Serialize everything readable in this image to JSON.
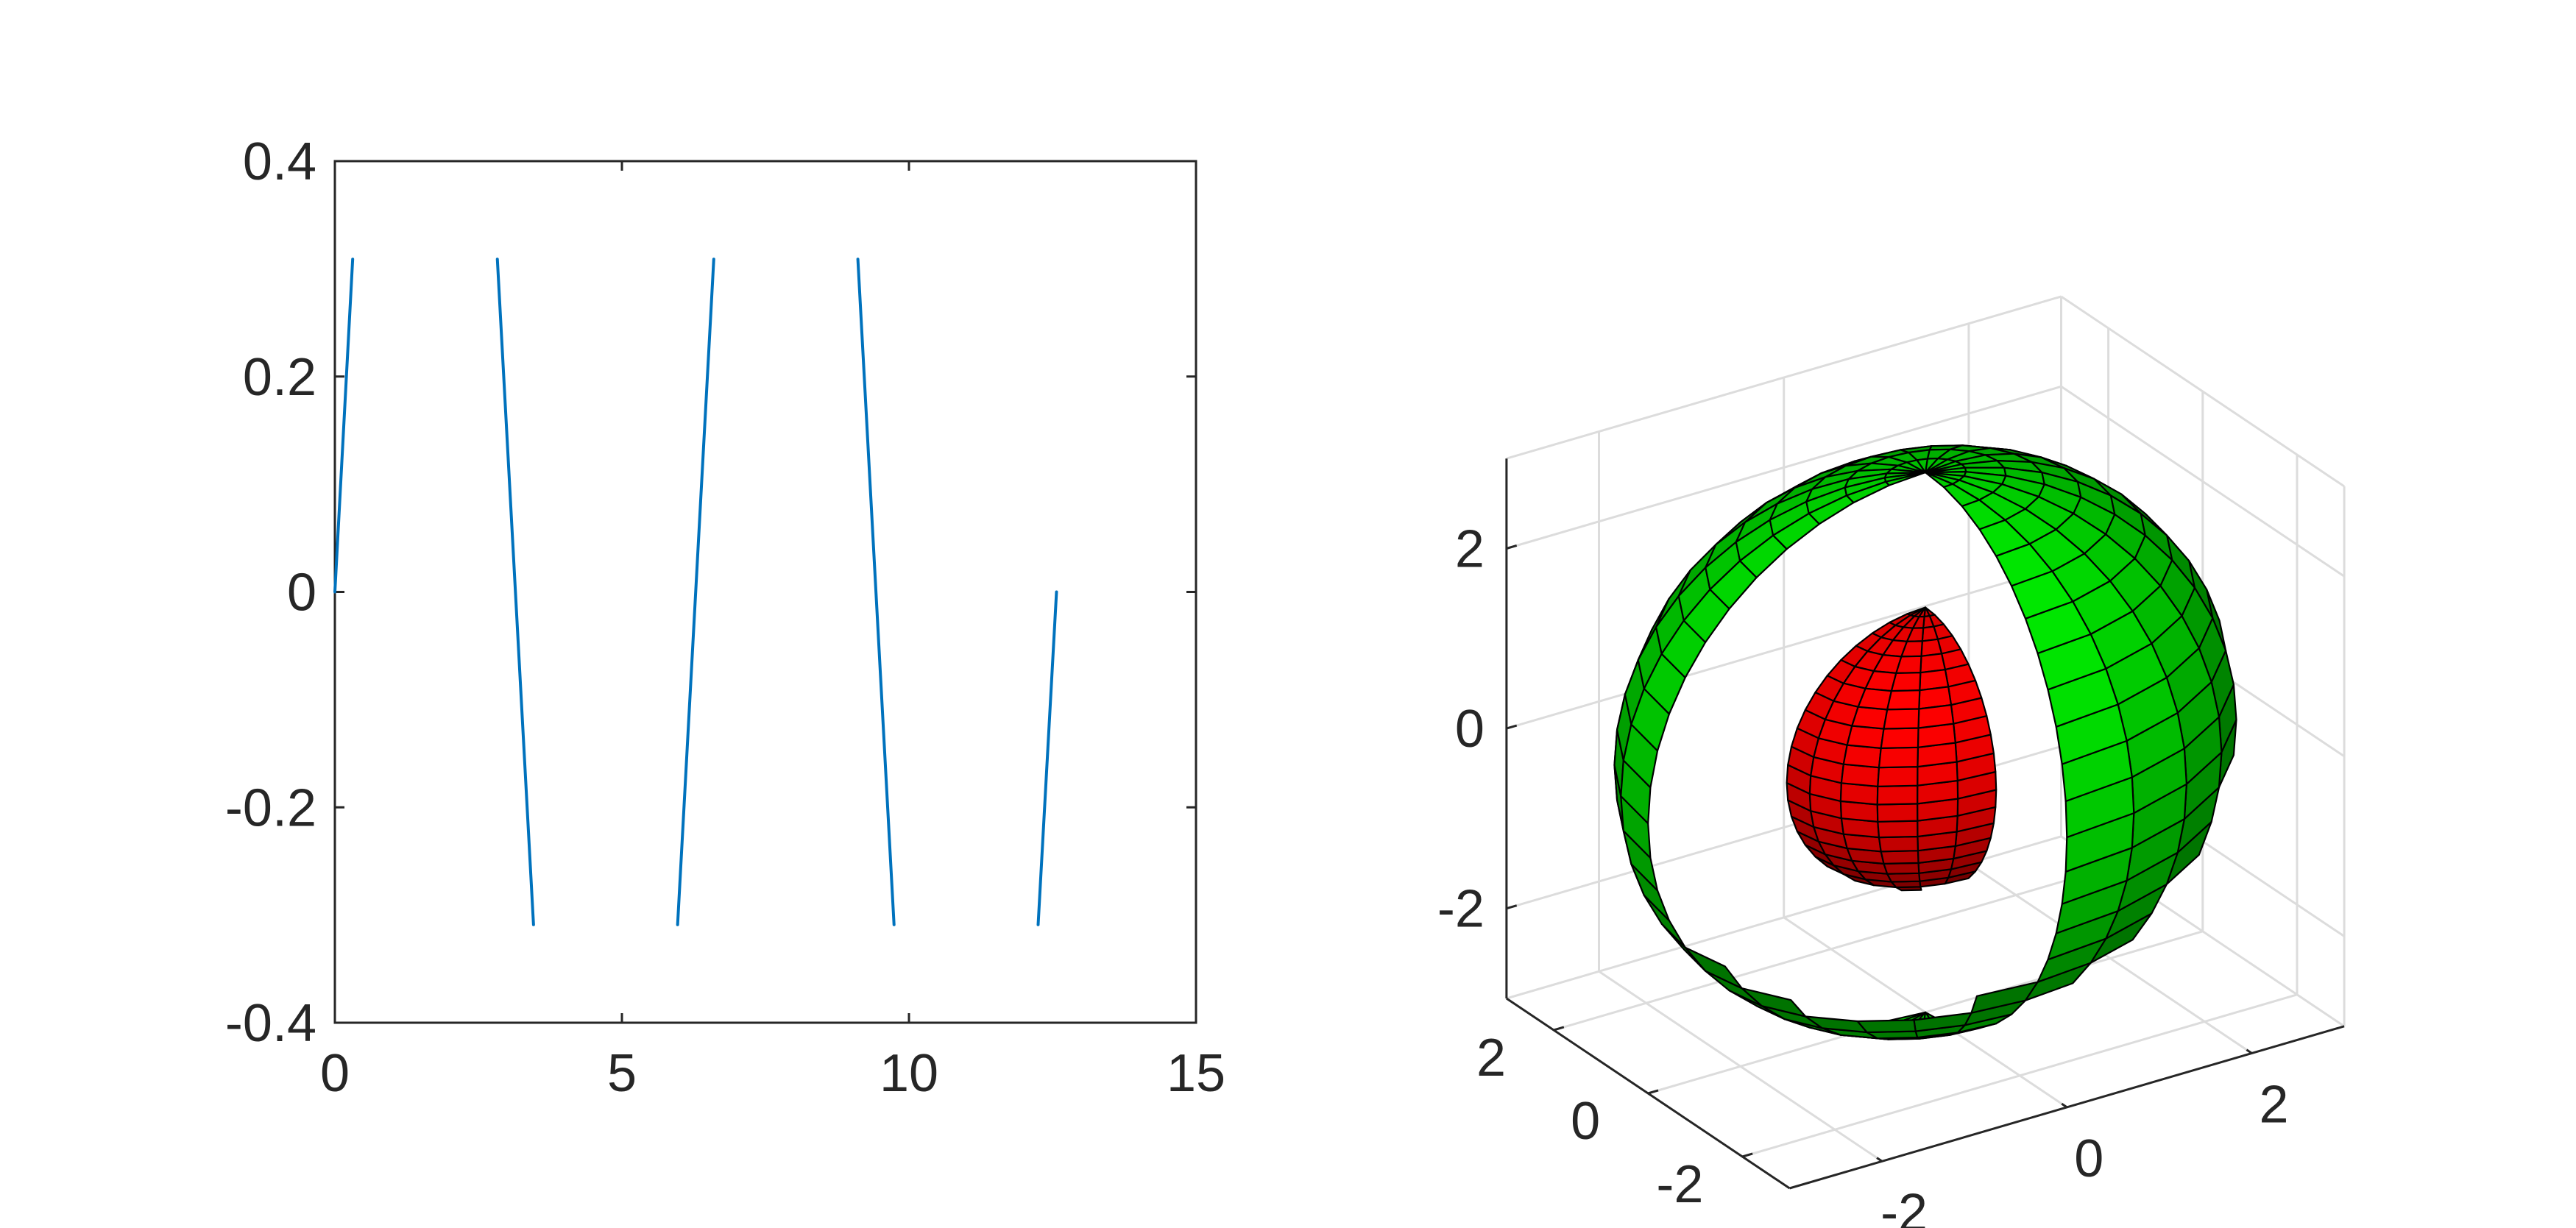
{
  "chart_data": [
    {
      "type": "line",
      "title": "",
      "xlabel": "",
      "ylabel": "",
      "xlim": [
        0,
        15
      ],
      "ylim": [
        -0.4,
        0.4
      ],
      "xticks": [
        0,
        5,
        10,
        15
      ],
      "xtick_labels": [
        "0",
        "5",
        "10",
        "15"
      ],
      "yticks": [
        -0.4,
        -0.2,
        0,
        0.2,
        0.4
      ],
      "ytick_labels": [
        "-0.4",
        "-0.2",
        "0",
        "0.2",
        "0.4"
      ],
      "grid": false,
      "series": [
        {
          "color": "#0072BD",
          "segments": [
            [
              [
                0.0,
                0.0
              ],
              [
                0.31,
                0.309
              ]
            ],
            [
              [
                2.83,
                0.309
              ],
              [
                3.46,
                -0.309
              ]
            ],
            [
              [
                5.97,
                -0.309
              ],
              [
                6.6,
                0.309
              ]
            ],
            [
              [
                9.11,
                0.309
              ],
              [
                9.74,
                -0.309
              ]
            ],
            [
              [
                12.25,
                -0.309
              ],
              [
                12.57,
                0.0
              ]
            ]
          ]
        }
      ]
    },
    {
      "type": "surface3d",
      "title": "",
      "grid": true,
      "xlim": [
        -3,
        3
      ],
      "ylim": [
        -3,
        3
      ],
      "zlim": [
        -3,
        3
      ],
      "xtick_labels": [
        "-2",
        "0",
        "2"
      ],
      "ytick_labels": [
        "-2",
        "0",
        "2"
      ],
      "ztick_labels": [
        "-2",
        "0",
        "2"
      ],
      "surfaces": [
        {
          "name": "",
          "shape": "sphere-with-quarter-cutout",
          "radius": 3,
          "color": "#00FF00",
          "edge_color": "#000000"
        },
        {
          "name": "",
          "shape": "hemisphere-in-cutout",
          "radius": 1.5,
          "color": "#FF0000",
          "edge_color": "#000000"
        }
      ]
    }
  ]
}
